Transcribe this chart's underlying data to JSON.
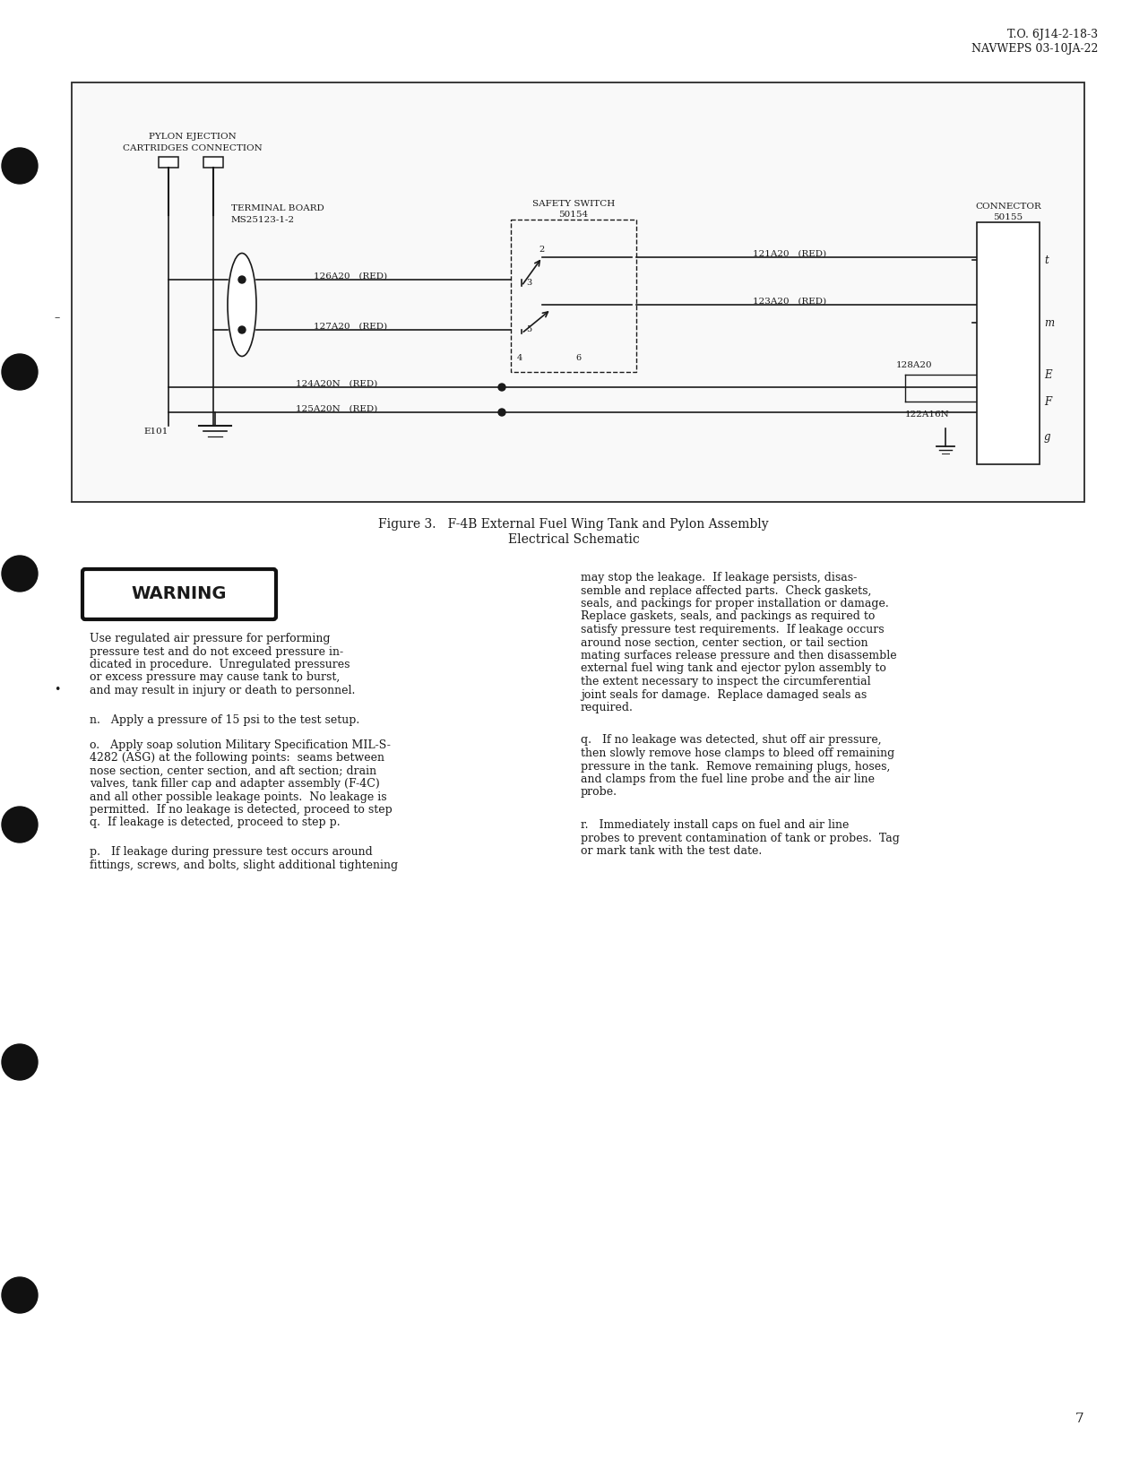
{
  "page_num": "7",
  "header_right_line1": "T.O. 6J14-2-18-3",
  "header_right_line2": "NAVWEPS 03-10JA-22",
  "figure_caption_line1": "Figure 3.   F-4B External Fuel Wing Tank and Pylon Assembly",
  "figure_caption_line2": "Electrical Schematic",
  "warning_title": "WARNING",
  "warning_text_lines": [
    "Use regulated air pressure for performing",
    "pressure test and do not exceed pressure in-",
    "dicated in procedure.  Unregulated pressures",
    "or excess pressure may cause tank to burst,",
    "and may result in injury or death to personnel."
  ],
  "para_n": "n.   Apply a pressure of 15 psi to the test setup.",
  "para_o_lines": [
    "o.   Apply soap solution Military Specification MIL-S-",
    "4282 (ASG) at the following points:  seams between",
    "nose section, center section, and aft section; drain",
    "valves, tank filler cap and adapter assembly (F-4C)",
    "and all other possible leakage points.  No leakage is",
    "permitted.  If no leakage is detected, proceed to step",
    "q.  If leakage is detected, proceed to step p."
  ],
  "para_p_lines": [
    "p.   If leakage during pressure test occurs around",
    "fittings, screws, and bolts, slight additional tightening"
  ],
  "para_right1_lines": [
    "may stop the leakage.  If leakage persists, disas-",
    "semble and replace affected parts.  Check gaskets,",
    "seals, and packings for proper installation or damage.",
    "Replace gaskets, seals, and packings as required to",
    "satisfy pressure test requirements.  If leakage occurs",
    "around nose section, center section, or tail section",
    "mating surfaces release pressure and then disassemble",
    "external fuel wing tank and ejector pylon assembly to",
    "the extent necessary to inspect the circumferential",
    "joint seals for damage.  Replace damaged seals as",
    "required."
  ],
  "para_q_lines": [
    "q.   If no leakage was detected, shut off air pressure,",
    "then slowly remove hose clamps to bleed off remaining",
    "pressure in the tank.  Remove remaining plugs, hoses,",
    "and clamps from the fuel line probe and the air line",
    "probe."
  ],
  "para_r_lines": [
    "r.   Immediately install caps on fuel and air line",
    "probes to prevent contamination of tank or probes.  Tag",
    "or mark tank with the test date."
  ],
  "bg_color": "#ffffff",
  "text_color": "#1a1a1a",
  "diagram_border_color": "#2a2a2a"
}
